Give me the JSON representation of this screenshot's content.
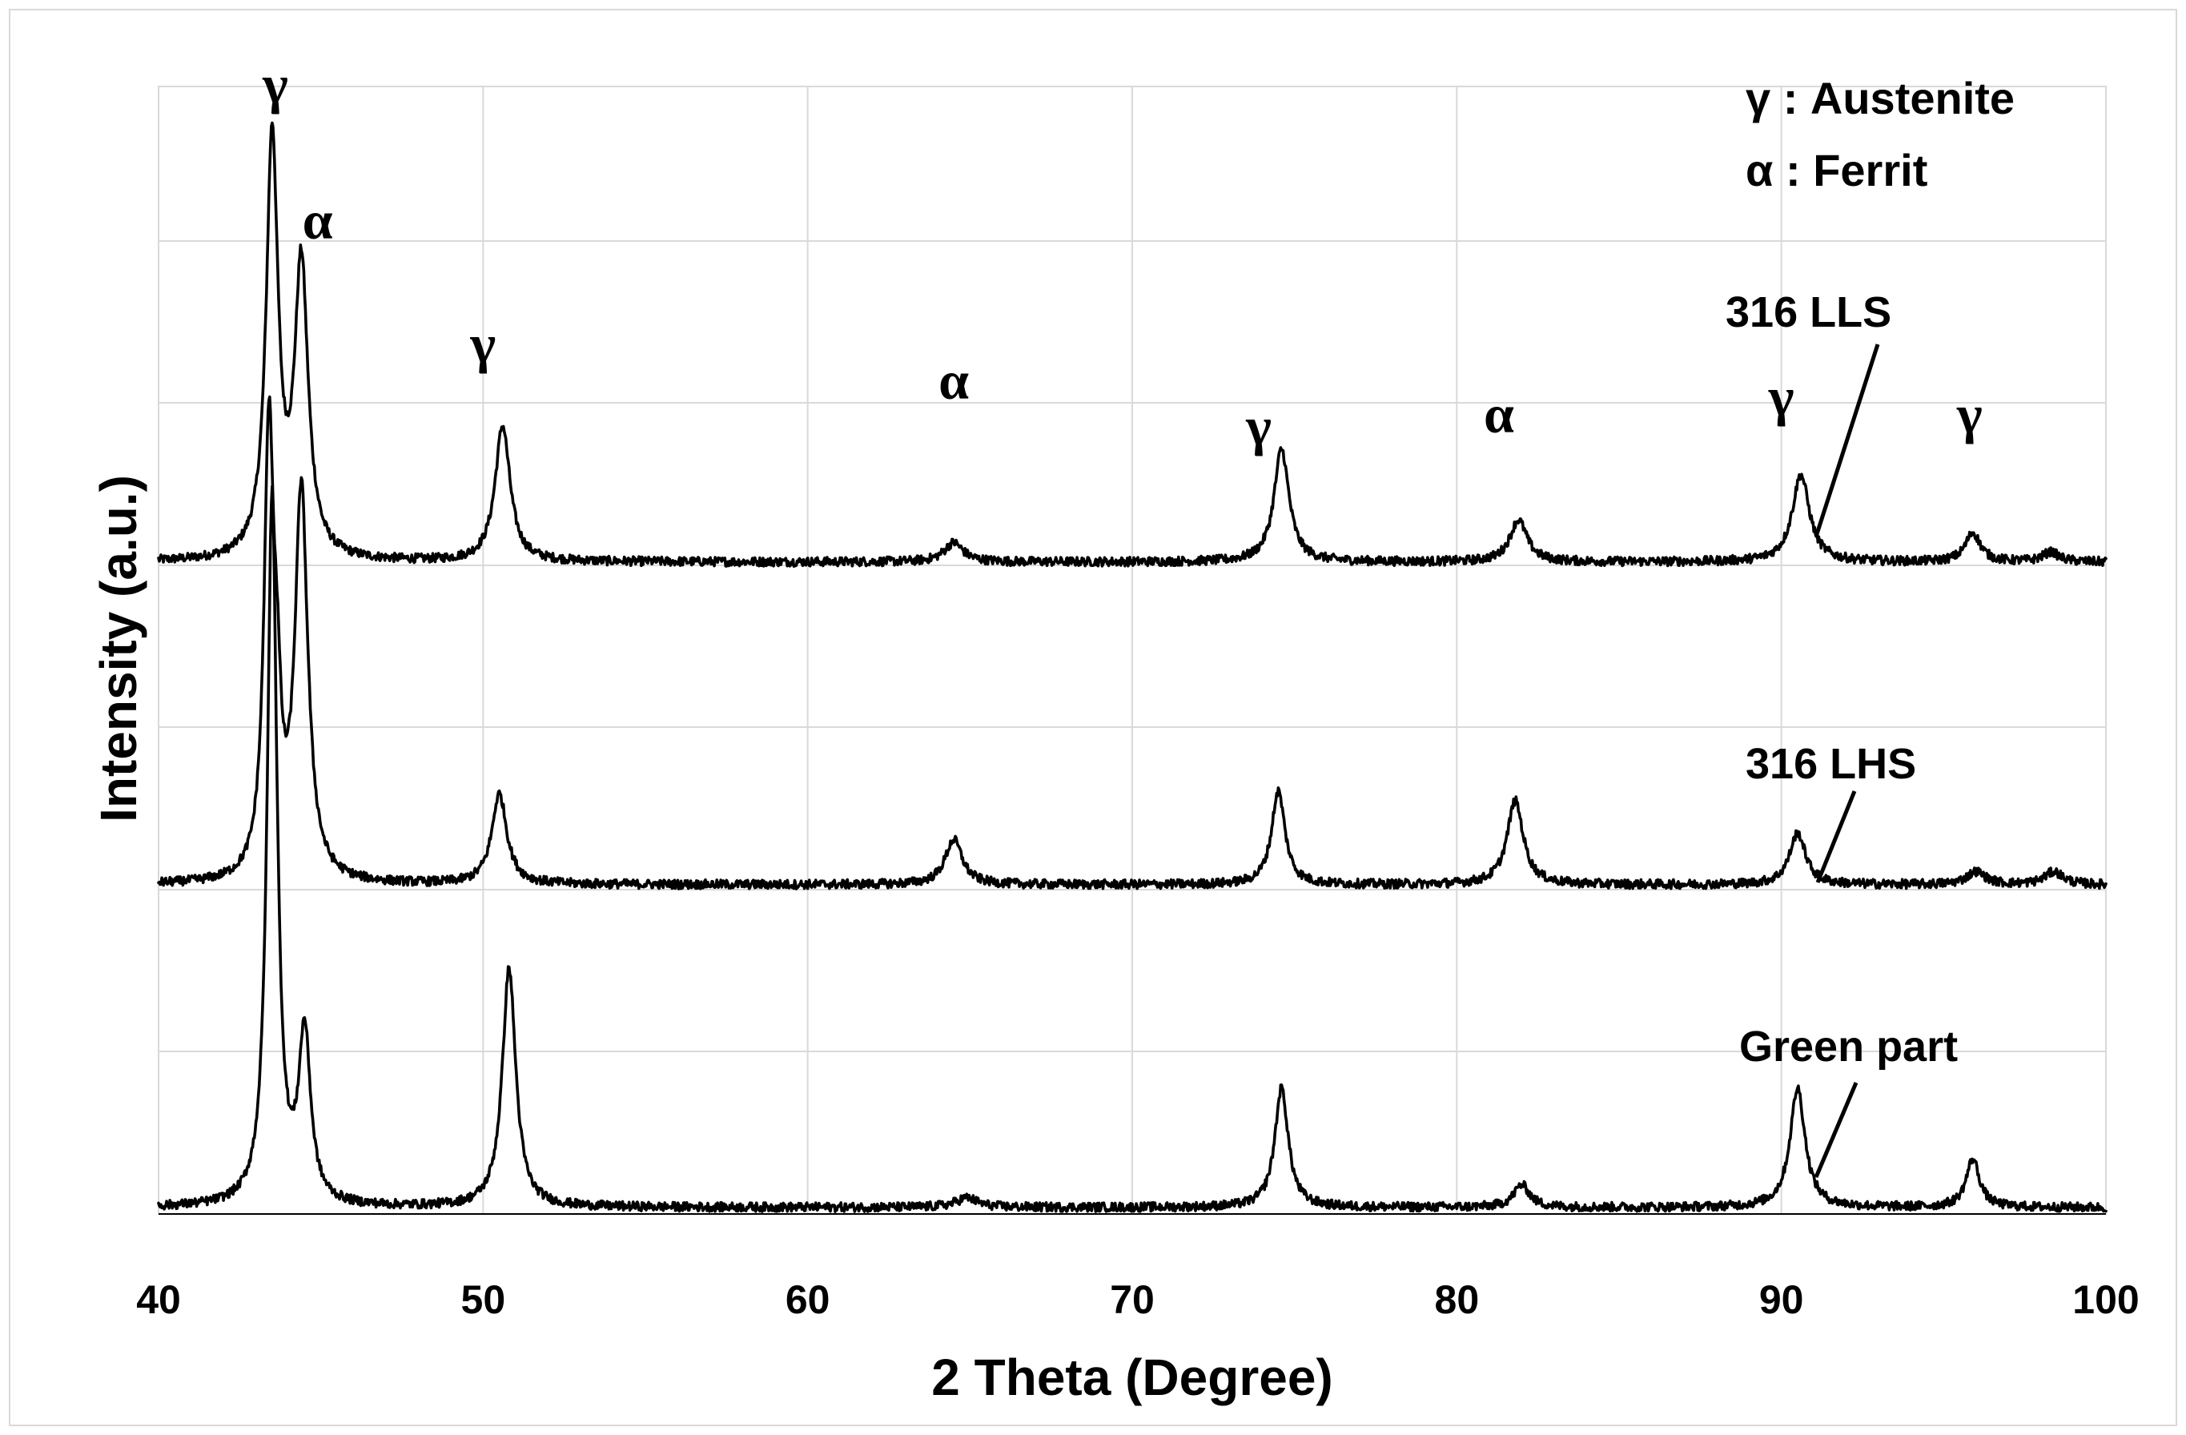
{
  "chart_data": {
    "type": "line",
    "title": "",
    "xlabel": "2 Theta (Degree)",
    "ylabel": "Intensity (a.u.)",
    "xlim": [
      40,
      100
    ],
    "xticks": [
      40,
      50,
      60,
      70,
      80,
      90,
      100
    ],
    "yticks_labeled": false,
    "grid": true,
    "legend": [
      {
        "symbol": "γ",
        "text": "γ : Austenite"
      },
      {
        "symbol": "α",
        "text": "α : Ferrit"
      }
    ],
    "series": [
      {
        "name": "316 LLS",
        "baseline": 2.0,
        "peaks": [
          {
            "x": 43.5,
            "height": 1.3,
            "width": 0.22
          },
          {
            "x": 44.4,
            "height": 0.9,
            "width": 0.25
          },
          {
            "x": 50.6,
            "height": 0.42,
            "width": 0.28
          },
          {
            "x": 64.5,
            "height": 0.06,
            "width": 0.35
          },
          {
            "x": 74.6,
            "height": 0.35,
            "width": 0.28
          },
          {
            "x": 81.9,
            "height": 0.13,
            "width": 0.32
          },
          {
            "x": 90.6,
            "height": 0.27,
            "width": 0.32
          },
          {
            "x": 95.9,
            "height": 0.09,
            "width": 0.28
          },
          {
            "x": 98.3,
            "height": 0.03,
            "width": 0.3
          }
        ]
      },
      {
        "name": "316 LHS",
        "baseline": 1.0,
        "peaks": [
          {
            "x": 43.4,
            "height": 1.35,
            "width": 0.18
          },
          {
            "x": 43.65,
            "height": 0.35,
            "width": 0.15
          },
          {
            "x": 44.4,
            "height": 1.2,
            "width": 0.24
          },
          {
            "x": 50.5,
            "height": 0.28,
            "width": 0.28
          },
          {
            "x": 64.5,
            "height": 0.14,
            "width": 0.32
          },
          {
            "x": 74.5,
            "height": 0.29,
            "width": 0.25
          },
          {
            "x": 81.8,
            "height": 0.26,
            "width": 0.3
          },
          {
            "x": 90.5,
            "height": 0.16,
            "width": 0.3
          },
          {
            "x": 96.0,
            "height": 0.04,
            "width": 0.35
          },
          {
            "x": 98.4,
            "height": 0.04,
            "width": 0.35
          }
        ]
      },
      {
        "name": "Green part",
        "baseline": 0.0,
        "peaks": [
          {
            "x": 43.5,
            "height": 2.2,
            "width": 0.18
          },
          {
            "x": 44.5,
            "height": 0.52,
            "width": 0.22
          },
          {
            "x": 50.8,
            "height": 0.74,
            "width": 0.25
          },
          {
            "x": 64.9,
            "height": 0.03,
            "width": 0.4
          },
          {
            "x": 74.6,
            "height": 0.37,
            "width": 0.25
          },
          {
            "x": 82.0,
            "height": 0.07,
            "width": 0.3
          },
          {
            "x": 90.5,
            "height": 0.37,
            "width": 0.28
          },
          {
            "x": 95.9,
            "height": 0.15,
            "width": 0.25
          }
        ]
      }
    ],
    "peak_annotations": [
      {
        "symbol": "γ",
        "x": 43.6
      },
      {
        "symbol": "α",
        "x": 44.9
      },
      {
        "symbol": "γ",
        "x": 50.0
      },
      {
        "symbol": "α",
        "x": 64.5
      },
      {
        "symbol": "γ",
        "x": 73.9
      },
      {
        "symbol": "α",
        "x": 81.3
      },
      {
        "symbol": "γ",
        "x": 90.0
      },
      {
        "symbol": "γ",
        "x": 95.8
      }
    ]
  }
}
